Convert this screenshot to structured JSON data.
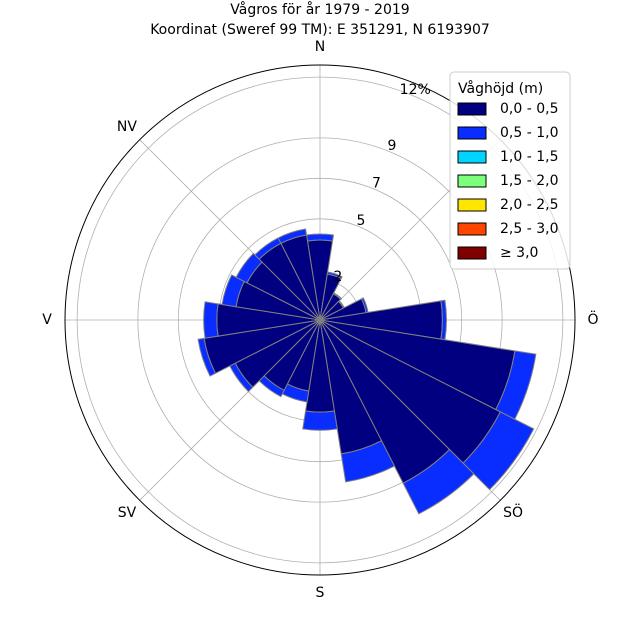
{
  "chart_data": {
    "type": "windrose",
    "title": "Vågros för år 1979 - 2019",
    "subtitle": "Koordinat (Sweref 99 TM): E 351291, N 6193907",
    "directions": [
      "N",
      "Ö",
      "S",
      "V",
      "NV",
      "SÖ",
      "SV"
    ],
    "direction_angles_deg": [
      0,
      90,
      180,
      270,
      315,
      135,
      225
    ],
    "radial_ticks": [
      {
        "value": 2,
        "label": "2"
      },
      {
        "value": 5,
        "label": "5"
      },
      {
        "value": 7,
        "label": "7"
      },
      {
        "value": 9,
        "label": "9"
      },
      {
        "value": 12,
        "label": "12%"
      }
    ],
    "rlim": [
      0,
      12.6
    ],
    "sector_width_deg": 18,
    "legend": {
      "title": "Våghöjd (m)",
      "placement": "top-right",
      "entries": [
        {
          "label": "0,0 - 0,5",
          "color": "#000080"
        },
        {
          "label": "0,5 - 1,0",
          "color": "#0a2dff"
        },
        {
          "label": "1,0 - 1,5",
          "color": "#00d4ff"
        },
        {
          "label": "1,5 - 2,0",
          "color": "#7cff7a"
        },
        {
          "label": "2,0 - 2,5",
          "color": "#ffe600"
        },
        {
          "label": "2,5 - 3,0",
          "color": "#ff4500"
        },
        {
          "label": "≥ 3,0",
          "color": "#800000"
        }
      ]
    },
    "series": [
      {
        "name": "0,0 - 0,5",
        "values": [
          3.95,
          2.3,
          1.45,
          1.3,
          2.3,
          6.05,
          9.75,
          10.0,
          9.05,
          6.7,
          4.55,
          3.55,
          3.9,
          4.7,
          5.8,
          5.1,
          4.2,
          4.05,
          4.25,
          4.25
        ]
      },
      {
        "name": "0,5 - 1,0",
        "values": [
          0.3,
          0.1,
          0.05,
          0.05,
          0.1,
          0.2,
          1.05,
          1.85,
          1.7,
          1.4,
          0.9,
          0.55,
          0.35,
          0.3,
          0.3,
          0.65,
          0.7,
          0.6,
          0.3,
          0.3
        ]
      }
    ],
    "grid": true
  }
}
